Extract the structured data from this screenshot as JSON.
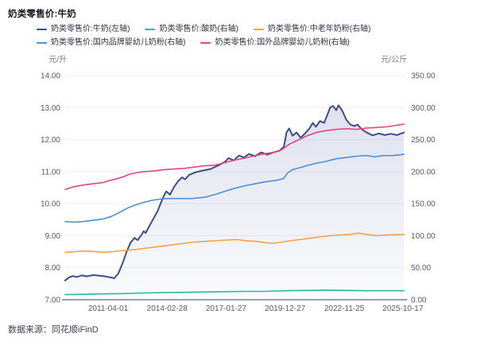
{
  "header": {
    "title": "奶类零售价:牛奶"
  },
  "footer": {
    "source_label": "数据来源：",
    "source_value": "同花顺iFinD"
  },
  "chart_data": {
    "type": "line",
    "title": "奶类零售价:牛奶",
    "legend_position": "top-left-two-rows",
    "grid": true,
    "left_axis": {
      "unit": "元/升",
      "ylim": [
        7,
        14
      ],
      "ticks": [
        "14.00",
        "13.00",
        "12.00",
        "11.00",
        "10.00",
        "9.00",
        "8.00",
        "7.00"
      ]
    },
    "right_axis": {
      "unit": "元/公斤",
      "ylim": [
        0,
        350
      ],
      "ticks": [
        "350.00",
        "300.00",
        "250.00",
        "200.00",
        "150.00",
        "100.00",
        "50.00",
        "0.00"
      ]
    },
    "x_axis": {
      "range_years": [
        2009.13,
        2025.84
      ],
      "ticks": [
        {
          "label": "2011-04-01",
          "year": 2011.25
        },
        {
          "label": "2014-02-28",
          "year": 2014.16
        },
        {
          "label": "2017-01-27",
          "year": 2017.07
        },
        {
          "label": "2019-12-27",
          "year": 2019.98
        },
        {
          "label": "2022-11-25",
          "year": 2022.9
        },
        {
          "label": "2025-10-17",
          "year": 2025.79
        }
      ]
    },
    "series": [
      {
        "name": "奶类零售价:牛奶(左轴)",
        "axis": "left",
        "color": "#3d4c8a",
        "width": 2,
        "legend_row": 0,
        "area_fill": true,
        "points": [
          [
            2009.13,
            7.6
          ],
          [
            2009.3,
            7.69
          ],
          [
            2009.5,
            7.74
          ],
          [
            2009.7,
            7.71
          ],
          [
            2009.95,
            7.76
          ],
          [
            2010.2,
            7.73
          ],
          [
            2010.5,
            7.77
          ],
          [
            2010.8,
            7.75
          ],
          [
            2011.1,
            7.73
          ],
          [
            2011.35,
            7.7
          ],
          [
            2011.55,
            7.67
          ],
          [
            2011.75,
            7.82
          ],
          [
            2011.95,
            8.12
          ],
          [
            2012.15,
            8.48
          ],
          [
            2012.35,
            8.78
          ],
          [
            2012.55,
            8.93
          ],
          [
            2012.7,
            8.86
          ],
          [
            2012.9,
            9.03
          ],
          [
            2013.0,
            9.14
          ],
          [
            2013.1,
            9.08
          ],
          [
            2013.3,
            9.32
          ],
          [
            2013.5,
            9.55
          ],
          [
            2013.7,
            9.78
          ],
          [
            2013.85,
            10.02
          ],
          [
            2014.0,
            10.25
          ],
          [
            2014.12,
            10.38
          ],
          [
            2014.3,
            10.28
          ],
          [
            2014.5,
            10.52
          ],
          [
            2014.7,
            10.7
          ],
          [
            2014.9,
            10.82
          ],
          [
            2015.05,
            10.76
          ],
          [
            2015.25,
            10.9
          ],
          [
            2015.55,
            10.98
          ],
          [
            2015.9,
            11.03
          ],
          [
            2016.3,
            11.08
          ],
          [
            2016.7,
            11.2
          ],
          [
            2017.0,
            11.3
          ],
          [
            2017.2,
            11.42
          ],
          [
            2017.45,
            11.35
          ],
          [
            2017.7,
            11.5
          ],
          [
            2017.95,
            11.44
          ],
          [
            2018.2,
            11.55
          ],
          [
            2018.5,
            11.48
          ],
          [
            2018.8,
            11.6
          ],
          [
            2019.1,
            11.53
          ],
          [
            2019.4,
            11.6
          ],
          [
            2019.7,
            11.65
          ],
          [
            2019.92,
            11.78
          ],
          [
            2020.05,
            12.22
          ],
          [
            2020.18,
            12.35
          ],
          [
            2020.35,
            12.12
          ],
          [
            2020.55,
            12.22
          ],
          [
            2020.75,
            12.06
          ],
          [
            2020.95,
            12.18
          ],
          [
            2021.15,
            12.32
          ],
          [
            2021.35,
            12.52
          ],
          [
            2021.5,
            12.4
          ],
          [
            2021.7,
            12.58
          ],
          [
            2021.9,
            12.52
          ],
          [
            2022.05,
            12.75
          ],
          [
            2022.2,
            13.0
          ],
          [
            2022.35,
            13.05
          ],
          [
            2022.5,
            12.92
          ],
          [
            2022.62,
            13.07
          ],
          [
            2022.8,
            12.9
          ],
          [
            2023.0,
            12.62
          ],
          [
            2023.2,
            12.47
          ],
          [
            2023.4,
            12.42
          ],
          [
            2023.55,
            12.47
          ],
          [
            2023.75,
            12.33
          ],
          [
            2024.0,
            12.22
          ],
          [
            2024.3,
            12.13
          ],
          [
            2024.6,
            12.19
          ],
          [
            2024.9,
            12.14
          ],
          [
            2025.2,
            12.18
          ],
          [
            2025.5,
            12.14
          ],
          [
            2025.84,
            12.22
          ]
        ]
      },
      {
        "name": "奶类零售价:酸奶(右轴)",
        "axis": "right",
        "color": "#27b9a2",
        "width": 1.6,
        "legend_row": 0,
        "area_fill": false,
        "points": [
          [
            2009.13,
            8
          ],
          [
            2010.0,
            8.5
          ],
          [
            2011.0,
            9
          ],
          [
            2012.0,
            9.5
          ],
          [
            2013.0,
            10.5
          ],
          [
            2014.0,
            11
          ],
          [
            2015.0,
            11.5
          ],
          [
            2016.0,
            12
          ],
          [
            2017.0,
            12.5
          ],
          [
            2018.0,
            13
          ],
          [
            2019.0,
            13
          ],
          [
            2020.0,
            14
          ],
          [
            2021.0,
            14.5
          ],
          [
            2022.0,
            15
          ],
          [
            2023.0,
            14.5
          ],
          [
            2024.0,
            14
          ],
          [
            2025.0,
            14
          ],
          [
            2025.84,
            14
          ]
        ]
      },
      {
        "name": "奶类零售价:中老年奶粉(右轴)",
        "axis": "right",
        "color": "#f2a44a",
        "width": 1.6,
        "legend_row": 0,
        "area_fill": false,
        "points": [
          [
            2009.13,
            74
          ],
          [
            2009.6,
            75
          ],
          [
            2010.1,
            76
          ],
          [
            2010.6,
            75
          ],
          [
            2011.0,
            74
          ],
          [
            2011.5,
            75
          ],
          [
            2012.0,
            77
          ],
          [
            2012.5,
            78
          ],
          [
            2013.0,
            80
          ],
          [
            2013.5,
            82
          ],
          [
            2014.0,
            84
          ],
          [
            2014.5,
            86
          ],
          [
            2015.0,
            88
          ],
          [
            2015.5,
            90
          ],
          [
            2016.0,
            91
          ],
          [
            2016.5,
            92
          ],
          [
            2017.0,
            93
          ],
          [
            2017.6,
            94
          ],
          [
            2018.1,
            92
          ],
          [
            2018.6,
            91
          ],
          [
            2019.0,
            89
          ],
          [
            2019.4,
            88
          ],
          [
            2019.8,
            90
          ],
          [
            2020.2,
            92
          ],
          [
            2020.7,
            94
          ],
          [
            2021.2,
            96
          ],
          [
            2021.7,
            98
          ],
          [
            2022.2,
            100
          ],
          [
            2022.7,
            101
          ],
          [
            2023.2,
            102
          ],
          [
            2023.6,
            104
          ],
          [
            2024.0,
            102
          ],
          [
            2024.5,
            100
          ],
          [
            2025.0,
            101
          ],
          [
            2025.84,
            102
          ]
        ]
      },
      {
        "name": "奶类零售价:国内品牌婴幼儿奶粉(右轴)",
        "axis": "right",
        "color": "#4d8fd8",
        "width": 1.6,
        "legend_row": 1,
        "area_fill": false,
        "points": [
          [
            2009.13,
            122
          ],
          [
            2009.6,
            121
          ],
          [
            2010.0,
            122
          ],
          [
            2010.5,
            124
          ],
          [
            2011.0,
            126
          ],
          [
            2011.4,
            130
          ],
          [
            2011.8,
            136
          ],
          [
            2012.2,
            143
          ],
          [
            2012.6,
            148
          ],
          [
            2013.0,
            152
          ],
          [
            2013.4,
            155
          ],
          [
            2013.8,
            157
          ],
          [
            2014.2,
            158
          ],
          [
            2014.8,
            158
          ],
          [
            2015.4,
            158
          ],
          [
            2016.0,
            160
          ],
          [
            2016.5,
            164
          ],
          [
            2017.0,
            169
          ],
          [
            2017.5,
            174
          ],
          [
            2018.0,
            178
          ],
          [
            2018.5,
            181
          ],
          [
            2019.0,
            184
          ],
          [
            2019.5,
            186
          ],
          [
            2019.9,
            189
          ],
          [
            2020.1,
            198
          ],
          [
            2020.35,
            203
          ],
          [
            2020.7,
            206
          ],
          [
            2021.0,
            209
          ],
          [
            2021.5,
            213
          ],
          [
            2022.0,
            216
          ],
          [
            2022.5,
            220
          ],
          [
            2023.0,
            222
          ],
          [
            2023.5,
            224
          ],
          [
            2024.0,
            225
          ],
          [
            2024.4,
            223
          ],
          [
            2024.8,
            225
          ],
          [
            2025.3,
            225
          ],
          [
            2025.84,
            227
          ]
        ]
      },
      {
        "name": "奶类零售价:国外品牌婴幼儿奶粉(右轴)",
        "axis": "right",
        "color": "#e8447f",
        "width": 1.6,
        "legend_row": 1,
        "area_fill": false,
        "points": [
          [
            2009.13,
            172
          ],
          [
            2009.5,
            176
          ],
          [
            2010.0,
            179
          ],
          [
            2010.5,
            181
          ],
          [
            2011.0,
            183
          ],
          [
            2011.3,
            186
          ],
          [
            2011.7,
            189
          ],
          [
            2012.0,
            192
          ],
          [
            2012.3,
            196
          ],
          [
            2012.6,
            198
          ],
          [
            2013.0,
            200
          ],
          [
            2013.5,
            201
          ],
          [
            2014.0,
            203
          ],
          [
            2014.5,
            204
          ],
          [
            2015.0,
            205
          ],
          [
            2015.5,
            207
          ],
          [
            2016.0,
            209
          ],
          [
            2016.5,
            210
          ],
          [
            2017.0,
            214
          ],
          [
            2017.5,
            218
          ],
          [
            2018.0,
            221
          ],
          [
            2018.5,
            225
          ],
          [
            2019.0,
            228
          ],
          [
            2019.4,
            230
          ],
          [
            2019.8,
            234
          ],
          [
            2020.2,
            243
          ],
          [
            2020.6,
            249
          ],
          [
            2021.0,
            255
          ],
          [
            2021.5,
            261
          ],
          [
            2022.0,
            264
          ],
          [
            2022.5,
            266
          ],
          [
            2023.0,
            267
          ],
          [
            2023.5,
            266
          ],
          [
            2024.0,
            268
          ],
          [
            2024.5,
            269
          ],
          [
            2025.0,
            270
          ],
          [
            2025.84,
            274
          ]
        ]
      }
    ]
  }
}
